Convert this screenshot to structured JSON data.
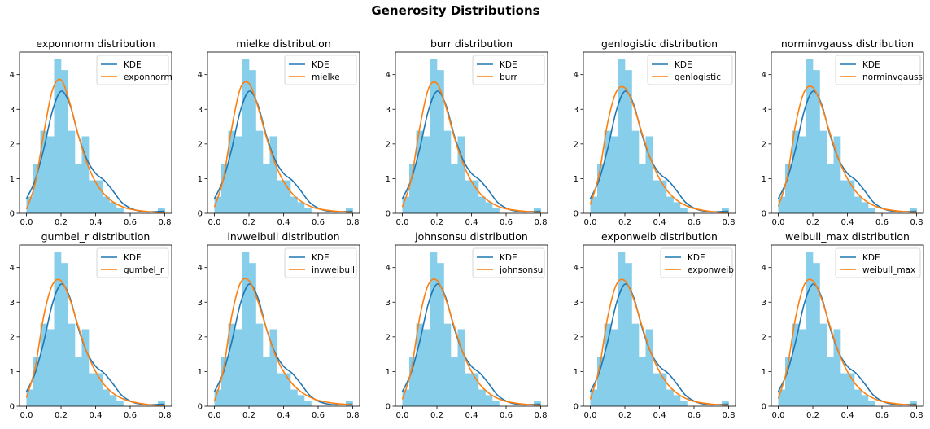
{
  "figure": {
    "title": "Generosity Distributions"
  },
  "colors": {
    "hist": "#87ceeb",
    "kde": "#1f77b4",
    "fit": "#ff7f0e",
    "axis": "#000000",
    "legend_border": "#cccccc"
  },
  "chart_data": [
    {
      "type": "line",
      "title": "exponnorm distribution",
      "series": [
        {
          "name": "KDE"
        },
        {
          "name": "exponnorm"
        }
      ]
    },
    {
      "type": "line",
      "title": "mielke distribution",
      "series": [
        {
          "name": "KDE"
        },
        {
          "name": "mielke"
        }
      ]
    },
    {
      "type": "line",
      "title": "burr distribution",
      "series": [
        {
          "name": "KDE"
        },
        {
          "name": "burr"
        }
      ]
    },
    {
      "type": "line",
      "title": "genlogistic distribution",
      "series": [
        {
          "name": "KDE"
        },
        {
          "name": "genlogistic"
        }
      ]
    },
    {
      "type": "line",
      "title": "norminvgauss distribution",
      "series": [
        {
          "name": "KDE"
        },
        {
          "name": "norminvgauss"
        }
      ]
    },
    {
      "type": "line",
      "title": "gumbel_r distribution",
      "series": [
        {
          "name": "KDE"
        },
        {
          "name": "gumbel_r"
        }
      ]
    },
    {
      "type": "line",
      "title": "invweibull distribution",
      "series": [
        {
          "name": "KDE"
        },
        {
          "name": "invweibull"
        }
      ]
    },
    {
      "type": "line",
      "title": "johnsonsu distribution",
      "series": [
        {
          "name": "KDE"
        },
        {
          "name": "johnsonsu"
        }
      ]
    },
    {
      "type": "line",
      "title": "exponweib distribution",
      "series": [
        {
          "name": "KDE"
        },
        {
          "name": "exponweib"
        }
      ]
    },
    {
      "type": "line",
      "title": "weibull_max distribution",
      "series": [
        {
          "name": "KDE"
        },
        {
          "name": "weibull_max"
        }
      ]
    }
  ],
  "shared": {
    "xlim": [
      -0.04,
      0.84
    ],
    "ylim": [
      0,
      4.65
    ],
    "xticks": [
      0.0,
      0.2,
      0.4,
      0.6,
      0.8
    ],
    "xtick_labels": [
      "0.0",
      "0.2",
      "0.4",
      "0.6",
      "0.8"
    ],
    "yticks": [
      0,
      1,
      2,
      3,
      4
    ],
    "ytick_labels": [
      "0",
      "1",
      "2",
      "3",
      "4"
    ],
    "hist": {
      "bin_edges": [
        0.0,
        0.04,
        0.08,
        0.12,
        0.16,
        0.2,
        0.24,
        0.28,
        0.32,
        0.36,
        0.4,
        0.44,
        0.48,
        0.52,
        0.56,
        0.6,
        0.64,
        0.68,
        0.72,
        0.76,
        0.8
      ],
      "density": [
        0.48,
        1.43,
        2.38,
        2.22,
        4.46,
        4.13,
        2.38,
        1.43,
        2.22,
        0.95,
        0.95,
        0.48,
        0.32,
        0.16,
        0.0,
        0.0,
        0.0,
        0.0,
        0.0,
        0.16
      ]
    },
    "kde": {
      "x": [
        0.0,
        0.05,
        0.1,
        0.15,
        0.2,
        0.25,
        0.3,
        0.35,
        0.4,
        0.45,
        0.5,
        0.55,
        0.6,
        0.65,
        0.7,
        0.75,
        0.8
      ],
      "y": [
        0.42,
        0.95,
        1.85,
        2.95,
        3.52,
        3.15,
        2.25,
        1.55,
        1.15,
        0.95,
        0.65,
        0.32,
        0.15,
        0.07,
        0.04,
        0.05,
        0.06
      ]
    },
    "fit_curves": {
      "exponnorm": {
        "x": [
          0.0,
          0.05,
          0.1,
          0.15,
          0.2,
          0.25,
          0.3,
          0.35,
          0.4,
          0.45,
          0.5,
          0.55,
          0.6,
          0.7,
          0.8
        ],
        "y": [
          0.12,
          0.85,
          2.3,
          3.55,
          3.85,
          3.2,
          2.25,
          1.45,
          0.9,
          0.55,
          0.33,
          0.2,
          0.12,
          0.05,
          0.02
        ]
      },
      "mielke": {
        "x": [
          0.0,
          0.05,
          0.1,
          0.15,
          0.2,
          0.25,
          0.3,
          0.35,
          0.4,
          0.45,
          0.5,
          0.55,
          0.6,
          0.7,
          0.8
        ],
        "y": [
          0.18,
          0.95,
          2.45,
          3.6,
          3.75,
          3.1,
          2.2,
          1.45,
          0.92,
          0.57,
          0.35,
          0.21,
          0.13,
          0.06,
          0.03
        ]
      },
      "burr": {
        "x": [
          0.0,
          0.05,
          0.1,
          0.15,
          0.2,
          0.25,
          0.3,
          0.35,
          0.4,
          0.45,
          0.5,
          0.55,
          0.6,
          0.7,
          0.8
        ],
        "y": [
          0.18,
          0.95,
          2.45,
          3.58,
          3.75,
          3.1,
          2.2,
          1.45,
          0.92,
          0.57,
          0.35,
          0.21,
          0.13,
          0.06,
          0.03
        ]
      },
      "genlogistic": {
        "x": [
          0.0,
          0.05,
          0.1,
          0.15,
          0.2,
          0.25,
          0.3,
          0.35,
          0.4,
          0.45,
          0.5,
          0.55,
          0.6,
          0.7,
          0.8
        ],
        "y": [
          0.25,
          1.1,
          2.6,
          3.5,
          3.62,
          3.1,
          2.3,
          1.55,
          1.0,
          0.62,
          0.38,
          0.23,
          0.14,
          0.05,
          0.02
        ]
      },
      "norminvgauss": {
        "x": [
          0.0,
          0.05,
          0.1,
          0.15,
          0.2,
          0.25,
          0.3,
          0.35,
          0.4,
          0.45,
          0.5,
          0.55,
          0.6,
          0.7,
          0.8
        ],
        "y": [
          0.2,
          1.0,
          2.55,
          3.5,
          3.63,
          3.1,
          2.3,
          1.55,
          1.0,
          0.62,
          0.38,
          0.23,
          0.14,
          0.06,
          0.03
        ]
      },
      "gumbel_r": {
        "x": [
          0.0,
          0.05,
          0.1,
          0.15,
          0.2,
          0.25,
          0.3,
          0.35,
          0.4,
          0.45,
          0.5,
          0.55,
          0.6,
          0.7,
          0.8
        ],
        "y": [
          0.25,
          1.1,
          2.6,
          3.5,
          3.62,
          3.1,
          2.3,
          1.55,
          1.0,
          0.62,
          0.38,
          0.23,
          0.14,
          0.05,
          0.02
        ]
      },
      "invweibull": {
        "x": [
          0.0,
          0.05,
          0.1,
          0.15,
          0.2,
          0.25,
          0.3,
          0.35,
          0.4,
          0.45,
          0.5,
          0.55,
          0.6,
          0.7,
          0.8
        ],
        "y": [
          0.15,
          1.0,
          2.6,
          3.55,
          3.62,
          3.05,
          2.25,
          1.5,
          1.0,
          0.65,
          0.42,
          0.27,
          0.17,
          0.08,
          0.04
        ]
      },
      "johnsonsu": {
        "x": [
          0.0,
          0.05,
          0.1,
          0.15,
          0.2,
          0.25,
          0.3,
          0.35,
          0.4,
          0.45,
          0.5,
          0.55,
          0.6,
          0.7,
          0.8
        ],
        "y": [
          0.2,
          1.0,
          2.55,
          3.5,
          3.63,
          3.1,
          2.3,
          1.55,
          1.0,
          0.62,
          0.38,
          0.23,
          0.14,
          0.06,
          0.03
        ]
      },
      "exponweib": {
        "x": [
          0.0,
          0.05,
          0.1,
          0.15,
          0.2,
          0.25,
          0.3,
          0.35,
          0.4,
          0.45,
          0.5,
          0.55,
          0.6,
          0.7,
          0.8
        ],
        "y": [
          0.2,
          1.05,
          2.55,
          3.5,
          3.62,
          3.1,
          2.3,
          1.55,
          1.0,
          0.62,
          0.38,
          0.23,
          0.14,
          0.06,
          0.03
        ]
      },
      "weibull_max": {
        "x": [
          0.0,
          0.05,
          0.1,
          0.15,
          0.2,
          0.25,
          0.3,
          0.35,
          0.4,
          0.45,
          0.5,
          0.55,
          0.6,
          0.7,
          0.8
        ],
        "y": [
          0.22,
          1.05,
          2.55,
          3.5,
          3.62,
          3.1,
          2.3,
          1.55,
          1.0,
          0.62,
          0.38,
          0.23,
          0.14,
          0.06,
          0.03
        ]
      }
    }
  }
}
